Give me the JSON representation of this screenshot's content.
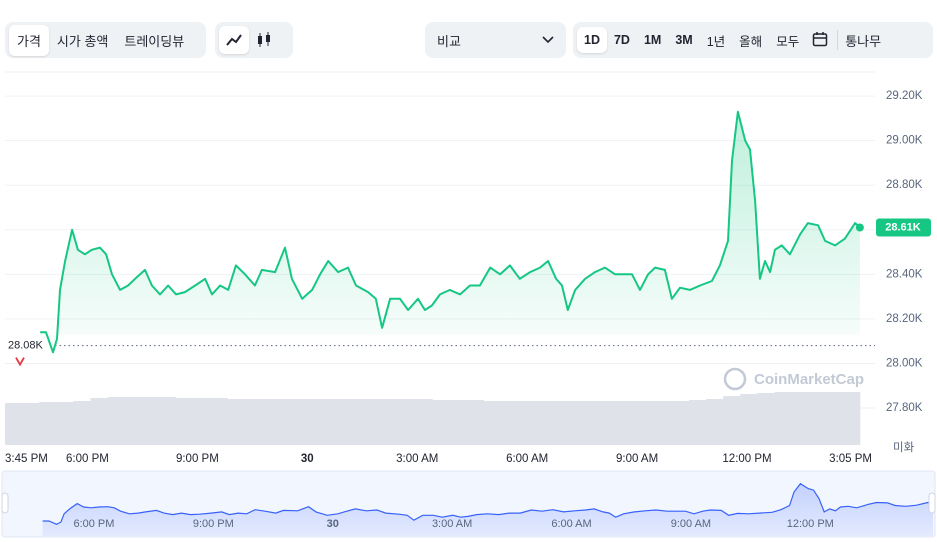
{
  "toolbar": {
    "views": [
      "가격",
      "시가 총액",
      "트레이딩뷰"
    ],
    "compare": "비교",
    "ranges": [
      "1D",
      "7D",
      "1M",
      "3M",
      "1년",
      "올해",
      "모두"
    ],
    "log": "통나무"
  },
  "chart_data": {
    "type": "line",
    "x": [
      16.71,
      16.87,
      17.06,
      17.17,
      17.25,
      17.39,
      17.58,
      17.74,
      17.93,
      18.12,
      18.34,
      18.51,
      18.67,
      18.89,
      19.11,
      19.3,
      19.57,
      19.76,
      19.98,
      20.2,
      20.42,
      20.66,
      20.94,
      21.21,
      21.4,
      21.62,
      21.84,
      22.05,
      22.3,
      22.57,
      22.76,
      23.12,
      23.39,
      23.58,
      23.86,
      24.13,
      24.35,
      24.57,
      24.84,
      25.11,
      25.33,
      25.66,
      25.87,
      26.04,
      26.26,
      26.53,
      26.75,
      27.02,
      27.21,
      27.4,
      27.62,
      27.89,
      28.17,
      28.44,
      28.71,
      28.99,
      29.26,
      29.53,
      29.8,
      30.08,
      30.35,
      30.57,
      30.79,
      30.95,
      31.11,
      31.31,
      31.58,
      31.85,
      32.12,
      32.4,
      32.67,
      32.86,
      33.08,
      33.3,
      33.49,
      33.76,
      33.95,
      34.17,
      34.44,
      34.72,
      35.04,
      35.26,
      35.48,
      35.59,
      35.75,
      35.95,
      36.08,
      36.22,
      36.35,
      36.49,
      36.63,
      36.76,
      36.95,
      37.17,
      37.45,
      37.66,
      37.94,
      38.13,
      38.4,
      38.67,
      38.95,
      39.08
    ],
    "series": [
      {
        "name": "가격",
        "color": "#16c784",
        "values": [
          28140,
          28140,
          28050,
          28110,
          28330,
          28460,
          28600,
          28510,
          28490,
          28510,
          28520,
          28490,
          28400,
          28330,
          28350,
          28380,
          28420,
          28350,
          28310,
          28350,
          28310,
          28320,
          28350,
          28380,
          28310,
          28350,
          28330,
          28440,
          28400,
          28350,
          28420,
          28410,
          28520,
          28380,
          28290,
          28330,
          28400,
          28460,
          28410,
          28430,
          28350,
          28320,
          28290,
          28160,
          28290,
          28290,
          28240,
          28290,
          28240,
          28260,
          28310,
          28330,
          28310,
          28350,
          28350,
          28430,
          28400,
          28440,
          28380,
          28410,
          28430,
          28460,
          28380,
          28350,
          28240,
          28330,
          28380,
          28410,
          28430,
          28400,
          28400,
          28400,
          28330,
          28400,
          28430,
          28420,
          28290,
          28340,
          28330,
          28350,
          28370,
          28440,
          28550,
          28910,
          29130,
          29000,
          28960,
          28730,
          28380,
          28460,
          28410,
          28510,
          28530,
          28490,
          28580,
          28630,
          28620,
          28550,
          28530,
          28560,
          28630,
          28610
        ]
      }
    ],
    "volume": {
      "color": "#dfe2e8",
      "ylim": [
        0,
        60
      ],
      "values": [
        42,
        42,
        43,
        43,
        44,
        47,
        48,
        48,
        48,
        48,
        47,
        47,
        47,
        46,
        46,
        46,
        46,
        46,
        46,
        46,
        46,
        46,
        46,
        46,
        46,
        45,
        45,
        45,
        44,
        44,
        44,
        44,
        44,
        44,
        44,
        44,
        44,
        44,
        44,
        44,
        45,
        46,
        49,
        51,
        52,
        53,
        53,
        53,
        53,
        53
      ]
    },
    "xlim": [
      15.75,
      39.083
    ],
    "xticks": [
      {
        "value": 15.75,
        "label": "3:45 PM"
      },
      {
        "value": 18,
        "label": "6:00 PM"
      },
      {
        "value": 21,
        "label": "9:00 PM"
      },
      {
        "value": 24,
        "label": "30"
      },
      {
        "value": 27,
        "label": "3:00 AM"
      },
      {
        "value": 30,
        "label": "6:00 AM"
      },
      {
        "value": 33,
        "label": "9:00 AM"
      },
      {
        "value": 36,
        "label": "12:00 PM"
      },
      {
        "value": 39.083,
        "label": "3:05 PM"
      }
    ],
    "ylim": [
      27634,
      29308
    ],
    "yticks": [
      {
        "value": 27800,
        "label": "27.80K"
      },
      {
        "value": 28000,
        "label": "28.00K"
      },
      {
        "value": 28200,
        "label": "28.20K"
      },
      {
        "value": 28400,
        "label": "28.40K"
      },
      {
        "value": 28600,
        "label": "28.60K"
      },
      {
        "value": 28800,
        "label": "28.80K"
      },
      {
        "value": 29000,
        "label": "29.00K"
      },
      {
        "value": 29200,
        "label": "29.20K"
      }
    ],
    "y_unit": "미화",
    "reference": {
      "value": 28080,
      "label": "28.08K",
      "color": "#ea3943"
    },
    "current": {
      "value": 28610,
      "label": "28.61K"
    },
    "watermark": "CoinMarketCap",
    "grid": true
  }
}
